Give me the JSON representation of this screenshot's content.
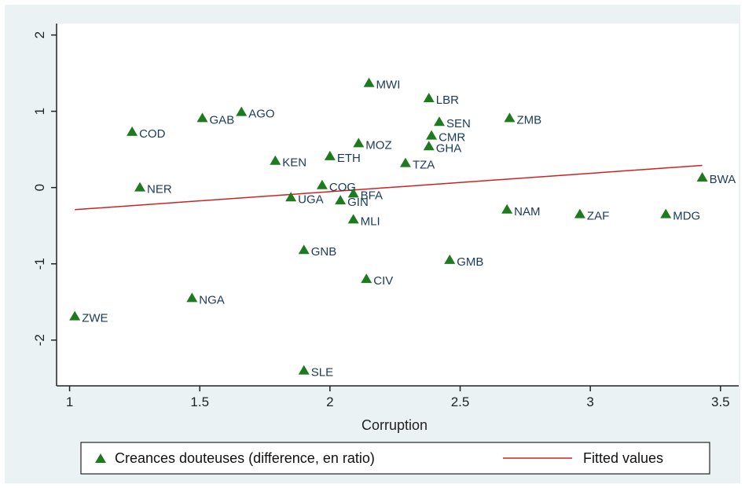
{
  "chart_data": {
    "type": "scatter",
    "xlabel": "Corruption",
    "ylabel": "",
    "title": "",
    "xlim": [
      0.95,
      3.57
    ],
    "ylim": [
      -2.6,
      2.15
    ],
    "xticks": [
      "1",
      "1.5",
      "2",
      "2.5",
      "3",
      "3.5"
    ],
    "yticks": [
      "-2",
      "-1",
      "0",
      "1",
      "2"
    ],
    "grid": false,
    "legend_position": "bottom",
    "series": [
      {
        "name": "Creances douteuses (difference, en ratio)",
        "marker": "triangle",
        "color": "#1e7a1e",
        "points": [
          {
            "label": "MWI",
            "x": 2.15,
            "y": 1.37
          },
          {
            "label": "LBR",
            "x": 2.38,
            "y": 1.17
          },
          {
            "label": "AGO",
            "x": 1.66,
            "y": 0.99
          },
          {
            "label": "GAB",
            "x": 1.51,
            "y": 0.91
          },
          {
            "label": "ZMB",
            "x": 2.69,
            "y": 0.91
          },
          {
            "label": "SEN",
            "x": 2.42,
            "y": 0.86
          },
          {
            "label": "COD",
            "x": 1.24,
            "y": 0.73
          },
          {
            "label": "CMR",
            "x": 2.39,
            "y": 0.68
          },
          {
            "label": "MOZ",
            "x": 2.11,
            "y": 0.58
          },
          {
            "label": "GHA",
            "x": 2.38,
            "y": 0.54
          },
          {
            "label": "ETH",
            "x": 2.0,
            "y": 0.41
          },
          {
            "label": "KEN",
            "x": 1.79,
            "y": 0.35
          },
          {
            "label": "TZA",
            "x": 2.29,
            "y": 0.32
          },
          {
            "label": "BWA",
            "x": 3.43,
            "y": 0.13
          },
          {
            "label": "COG",
            "x": 1.97,
            "y": 0.03
          },
          {
            "label": "NER",
            "x": 1.27,
            "y": 0.0
          },
          {
            "label": "BFA",
            "x": 2.09,
            "y": -0.08
          },
          {
            "label": "UGA",
            "x": 1.85,
            "y": -0.13
          },
          {
            "label": "GIN",
            "x": 2.04,
            "y": -0.17
          },
          {
            "label": "NAM",
            "x": 2.68,
            "y": -0.29
          },
          {
            "label": "ZAF",
            "x": 2.96,
            "y": -0.35
          },
          {
            "label": "MDG",
            "x": 3.29,
            "y": -0.35
          },
          {
            "label": "MLI",
            "x": 2.09,
            "y": -0.42
          },
          {
            "label": "GNB",
            "x": 1.9,
            "y": -0.82
          },
          {
            "label": "GMB",
            "x": 2.46,
            "y": -0.95
          },
          {
            "label": "CIV",
            "x": 2.14,
            "y": -1.2
          },
          {
            "label": "NGA",
            "x": 1.47,
            "y": -1.45
          },
          {
            "label": "ZWE",
            "x": 1.02,
            "y": -1.69
          },
          {
            "label": "SLE",
            "x": 1.9,
            "y": -2.4
          }
        ]
      },
      {
        "name": "Fitted values",
        "type": "line",
        "color": "#cc2222",
        "points": [
          {
            "x": 1.02,
            "y": -0.29
          },
          {
            "x": 3.43,
            "y": 0.29
          }
        ]
      }
    ]
  }
}
